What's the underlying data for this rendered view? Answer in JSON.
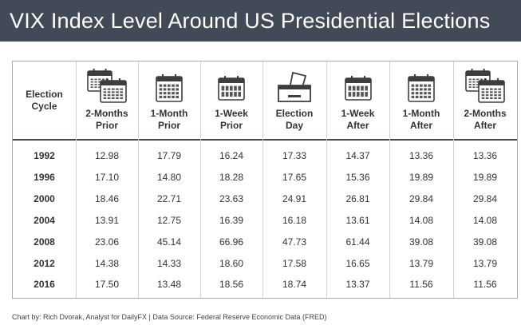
{
  "title": "VIX Index Level Around US Presidential Elections",
  "footer": "Chart by: Rich Dvorak, Analyst for DailyFX  |  Data Source: Federal Reserve Economic Data (FRED)",
  "columns": [
    {
      "label": "Election\nCycle",
      "icon": ""
    },
    {
      "label": "2-Months\nPrior",
      "icon": "double-calendar-icon"
    },
    {
      "label": "1-Month\nPrior",
      "icon": "calendar-month-icon"
    },
    {
      "label": "1-Week\nPrior",
      "icon": "calendar-week-icon"
    },
    {
      "label": "Election\nDay",
      "icon": "ballot-box-icon"
    },
    {
      "label": "1-Week\nAfter",
      "icon": "calendar-week-icon"
    },
    {
      "label": "1-Month\nAfter",
      "icon": "calendar-month-icon"
    },
    {
      "label": "2-Months\nAfter",
      "icon": "double-calendar-icon"
    }
  ],
  "chart_data": {
    "type": "table",
    "title": "VIX Index Level Around US Presidential Elections",
    "columns": [
      "Election Cycle",
      "2-Months Prior",
      "1-Month Prior",
      "1-Week Prior",
      "Election Day",
      "1-Week After",
      "1-Month After",
      "2-Months After"
    ],
    "rows": [
      {
        "year": "1992",
        "values": [
          "12.98",
          "17.79",
          "16.24",
          "17.33",
          "14.37",
          "13.36",
          "13.36"
        ]
      },
      {
        "year": "1996",
        "values": [
          "17.10",
          "14.80",
          "18.28",
          "17.65",
          "15.36",
          "19.89",
          "19.89"
        ]
      },
      {
        "year": "2000",
        "values": [
          "18.46",
          "22.71",
          "23.63",
          "24.91",
          "26.81",
          "29.84",
          "29.84"
        ]
      },
      {
        "year": "2004",
        "values": [
          "13.91",
          "12.75",
          "16.39",
          "16.18",
          "13.61",
          "14.08",
          "14.08"
        ]
      },
      {
        "year": "2008",
        "values": [
          "23.06",
          "45.14",
          "66.96",
          "47.73",
          "61.44",
          "39.08",
          "39.08"
        ]
      },
      {
        "year": "2012",
        "values": [
          "14.38",
          "14.33",
          "18.60",
          "17.58",
          "16.65",
          "13.79",
          "13.79"
        ]
      },
      {
        "year": "2016",
        "values": [
          "17.50",
          "13.48",
          "18.56",
          "18.74",
          "13.37",
          "11.56",
          "11.56"
        ]
      }
    ]
  }
}
